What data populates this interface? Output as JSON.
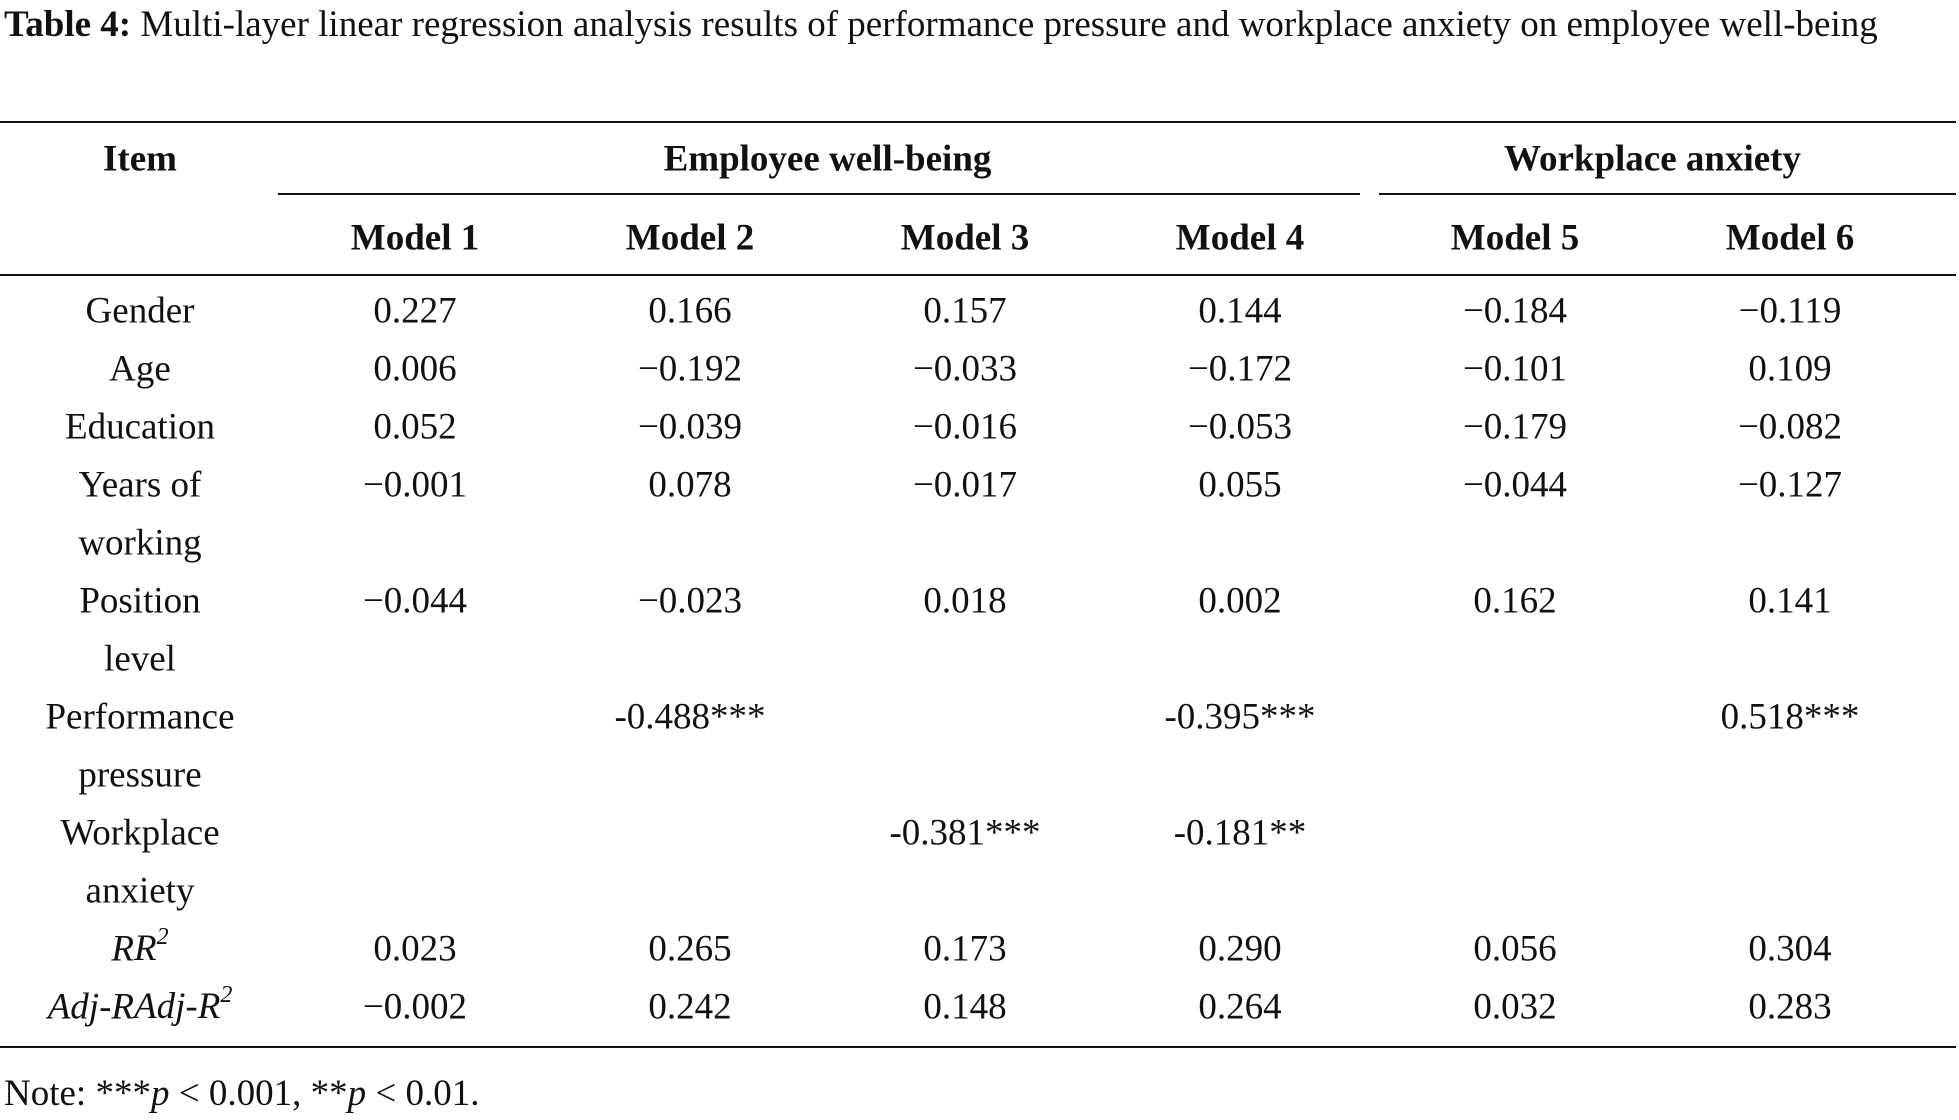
{
  "caption": {
    "label": "Table 4:",
    "text": "Multi-layer linear regression analysis results of performance pressure and workplace anxiety on employee well-being"
  },
  "table": {
    "item_header": "Item",
    "groups": [
      {
        "title": "Employee well-being",
        "models": [
          "Model 1",
          "Model 2",
          "Model 3",
          "Model 4"
        ]
      },
      {
        "title": "Workplace anxiety",
        "models": [
          "Model 5",
          "Model 6"
        ]
      }
    ],
    "rows": [
      {
        "label": [
          "Gender"
        ],
        "cells": [
          "0.227",
          "0.166",
          "0.157",
          "0.144",
          "−0.184",
          "−0.119"
        ]
      },
      {
        "label": [
          "Age"
        ],
        "cells": [
          "0.006",
          "−0.192",
          "−0.033",
          "−0.172",
          "−0.101",
          "0.109"
        ]
      },
      {
        "label": [
          "Education"
        ],
        "cells": [
          "0.052",
          "−0.039",
          "−0.016",
          "−0.053",
          "−0.179",
          "−0.082"
        ]
      },
      {
        "label": [
          "Years of",
          "working"
        ],
        "cells": [
          "−0.001",
          "0.078",
          "−0.017",
          "0.055",
          "−0.044",
          "−0.127"
        ]
      },
      {
        "label": [
          "Position",
          "level"
        ],
        "cells": [
          "−0.044",
          "−0.023",
          "0.018",
          "0.002",
          "0.162",
          "0.141"
        ]
      },
      {
        "label": [
          "Performance",
          "pressure"
        ],
        "cells": [
          null,
          "-0.488***",
          null,
          "-0.395***",
          null,
          "0.518***"
        ]
      },
      {
        "label": [
          "Workplace",
          "anxiety"
        ],
        "cells": [
          null,
          null,
          "-0.381***",
          "-0.181**",
          null,
          null
        ]
      },
      {
        "label": [
          "R"
        ],
        "label_sup": "2",
        "cells": [
          "0.023",
          "0.265",
          "0.173",
          "0.290",
          "0.056",
          "0.304"
        ]
      },
      {
        "label": [
          "Adj-R"
        ],
        "label_sup": "2",
        "cells": [
          "−0.002",
          "0.242",
          "0.148",
          "0.264",
          "0.032",
          "0.283"
        ]
      }
    ]
  },
  "note": [
    "Note: ***",
    "p",
    " < 0.001, **",
    "p",
    " < 0.01."
  ]
}
